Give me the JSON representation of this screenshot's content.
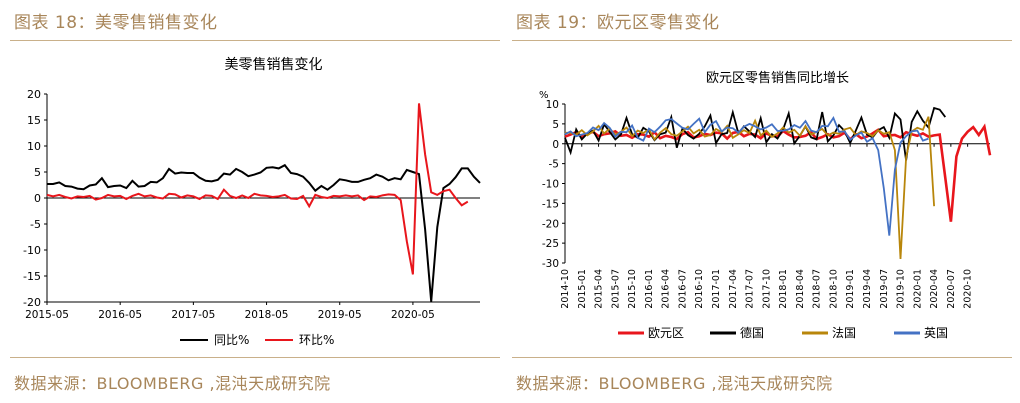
{
  "left": {
    "figure_label": "图表 18：美零售销售变化",
    "source": "数据来源：BLOOMBERG ,混沌天成研究院"
  },
  "right": {
    "figure_label": "图表 19：欧元区零售变化",
    "source": "数据来源：BLOOMBERG ,混沌天成研究院"
  },
  "colors": {
    "black": "#000000",
    "red": "#e8161c",
    "gold": "#b8860b",
    "blue": "#4472c4",
    "accent": "#a8865a"
  },
  "chart_data": [
    {
      "type": "line",
      "title": "美零售销售变化",
      "x_tick_labels": [
        "2015-05",
        "2016-05",
        "2017-05",
        "2018-05",
        "2019-05",
        "2020-05"
      ],
      "ylim": [
        -20,
        20
      ],
      "y_ticks": [
        20,
        15,
        10,
        5,
        0,
        -5,
        -10,
        -15,
        -20
      ],
      "legend_position": "bottom",
      "x_start": "2015-05",
      "series": [
        {
          "name": "同比%",
          "color": "#000000",
          "values": [
            2.7,
            2.7,
            3.0,
            2.3,
            2.2,
            1.8,
            1.7,
            2.4,
            2.6,
            3.8,
            2.1,
            2.3,
            2.4,
            1.9,
            3.3,
            2.2,
            2.3,
            3.1,
            3.0,
            3.8,
            5.6,
            4.7,
            4.9,
            4.8,
            4.8,
            3.9,
            3.3,
            3.2,
            3.5,
            4.7,
            4.5,
            5.6,
            5.0,
            4.2,
            4.5,
            4.9,
            5.8,
            5.9,
            5.7,
            6.3,
            4.8,
            4.6,
            4.1,
            2.9,
            1.4,
            2.3,
            1.6,
            2.5,
            3.6,
            3.4,
            3.1,
            3.1,
            3.5,
            3.8,
            4.5,
            4.1,
            3.4,
            3.8,
            3.6,
            5.4,
            5.0,
            4.6,
            -6.0,
            -19.9,
            -5.6,
            1.9,
            2.7,
            4.0,
            5.7,
            5.7,
            4.1,
            2.9
          ]
        },
        {
          "name": "环比%",
          "color": "#e8161c",
          "values": [
            0.6,
            0.3,
            0.6,
            0.2,
            -0.1,
            0.3,
            0.2,
            0.4,
            -0.3,
            0.0,
            0.6,
            0.3,
            0.4,
            -0.2,
            0.4,
            0.8,
            0.3,
            0.5,
            0.1,
            -0.1,
            0.8,
            0.7,
            0.1,
            0.5,
            0.3,
            -0.2,
            0.5,
            0.4,
            -0.2,
            1.6,
            0.4,
            0.0,
            0.5,
            0.0,
            0.8,
            0.5,
            0.4,
            0.2,
            0.3,
            0.6,
            -0.1,
            -0.2,
            0.4,
            -1.6,
            0.6,
            0.2,
            0.0,
            0.4,
            0.3,
            0.5,
            0.3,
            0.5,
            -0.4,
            0.3,
            0.2,
            0.5,
            0.7,
            0.6,
            -0.4,
            -8.3,
            -14.7,
            18.2,
            8.4,
            1.1,
            0.6,
            1.3,
            1.6,
            0.0,
            -1.4,
            -0.7
          ]
        }
      ]
    },
    {
      "type": "line",
      "title": "欧元区零售销售同比增长",
      "y_unit_label": "%",
      "x_tick_labels": [
        "2014-10",
        "2015-01",
        "2015-04",
        "2015-07",
        "2015-10",
        "2016-01",
        "2016-04",
        "2016-07",
        "2016-10",
        "2017-01",
        "2017-04",
        "2017-07",
        "2017-10",
        "2018-01",
        "2018-04",
        "2018-07",
        "2018-10",
        "2019-01",
        "2019-04",
        "2019-07",
        "2019-10",
        "2020-01",
        "2020-04",
        "2020-07",
        "2020-10"
      ],
      "ylim": [
        -30,
        10
      ],
      "y_ticks": [
        10,
        5,
        0,
        -5,
        -10,
        -15,
        -20,
        -25,
        -30
      ],
      "legend_position": "bottom",
      "x_start": "2014-10",
      "series": [
        {
          "name": "欧元区",
          "color": "#e8161c",
          "values": [
            1.8,
            2.3,
            2.9,
            1.7,
            2.5,
            3.0,
            1.9,
            2.4,
            2.6,
            3.1,
            2.0,
            2.2,
            1.5,
            2.4,
            2.3,
            1.8,
            2.9,
            1.4,
            2.0,
            1.7,
            1.2,
            2.4,
            2.9,
            1.6,
            1.9,
            2.5,
            2.2,
            2.8,
            2.6,
            1.3,
            2.7,
            3.0,
            1.9,
            2.5,
            2.3,
            1.4,
            2.6,
            2.0,
            1.8,
            3.2,
            2.3,
            1.6,
            1.7,
            2.0,
            2.9,
            1.2,
            1.7,
            2.4,
            1.6,
            1.9,
            2.8,
            1.1,
            2.4,
            1.4,
            1.8,
            2.6,
            3.5,
            1.9,
            2.1,
            2.2,
            1.6,
            2.9,
            2.4,
            2.0,
            2.6,
            1.8,
            2.1,
            2.3,
            -8.6,
            -19.6,
            -3.2,
            1.3,
            3.0,
            4.2,
            2.2,
            4.3,
            -2.9
          ]
        },
        {
          "name": "德国",
          "color": "#000000",
          "values": [
            1.5,
            -2.2,
            3.6,
            1.1,
            2.6,
            3.3,
            0.8,
            4.9,
            3.0,
            1.1,
            2.3,
            6.5,
            2.4,
            1.5,
            4.0,
            3.1,
            0.9,
            2.4,
            2.8,
            6.7,
            -1.0,
            3.8,
            2.2,
            1.3,
            2.5,
            4.4,
            7.1,
            0.2,
            2.4,
            2.7,
            7.9,
            2.6,
            4.4,
            3.1,
            1.7,
            6.4,
            0.4,
            2.4,
            1.3,
            3.6,
            7.6,
            0.1,
            2.0,
            4.4,
            1.6,
            1.1,
            8.0,
            0.6,
            2.1,
            4.7,
            3.2,
            0.2,
            3.3,
            6.6,
            2.3,
            1.6,
            3.4,
            4.2,
            1.5,
            7.6,
            6.1,
            -4.2,
            5.5,
            8.2,
            5.8,
            4.1,
            9.0,
            8.6,
            6.7
          ]
        },
        {
          "name": "法国",
          "color": "#b8860b",
          "values": [
            2.8,
            2.7,
            2.3,
            3.4,
            2.1,
            3.1,
            4.5,
            2.6,
            3.8,
            2.3,
            3.0,
            4.1,
            1.9,
            3.3,
            2.7,
            3.6,
            1.1,
            2.8,
            3.9,
            2.4,
            2.0,
            3.1,
            4.3,
            2.6,
            3.5,
            1.8,
            2.2,
            3.7,
            2.9,
            4.5,
            1.5,
            2.4,
            3.4,
            2.7,
            5.8,
            2.1,
            3.3,
            1.7,
            2.6,
            4.1,
            2.8,
            3.5,
            2.0,
            4.4,
            2.3,
            3.0,
            3.7,
            2.1,
            2.8,
            2.5,
            3.6,
            4.0,
            2.2,
            3.1,
            2.7,
            1.9,
            3.4,
            2.5,
            2.9,
            -1.6,
            -29.0,
            -3.4,
            3.1,
            4.0,
            3.5,
            6.8,
            -15.7
          ]
        },
        {
          "name": "英国",
          "color": "#4472c4",
          "values": [
            2.4,
            3.1,
            1.9,
            2.3,
            2.7,
            4.1,
            3.4,
            5.2,
            4.0,
            1.8,
            3.0,
            2.9,
            4.6,
            1.5,
            0.8,
            3.8,
            2.9,
            4.3,
            5.9,
            6.2,
            5.1,
            4.0,
            3.6,
            5.0,
            6.3,
            2.9,
            4.8,
            5.7,
            3.1,
            4.1,
            3.9,
            2.8,
            4.3,
            5.0,
            4.4,
            3.6,
            4.1,
            4.9,
            3.2,
            3.3,
            3.6,
            4.7,
            4.0,
            5.7,
            3.3,
            2.9,
            4.5,
            4.4,
            6.5,
            3.0,
            3.1,
            1.0,
            2.1,
            2.8,
            0.5,
            1.4,
            -1.6,
            -11.2,
            -23.1,
            -6.5,
            0.3,
            1.9,
            3.1,
            3.3,
            0.8,
            1.3
          ]
        }
      ]
    }
  ]
}
